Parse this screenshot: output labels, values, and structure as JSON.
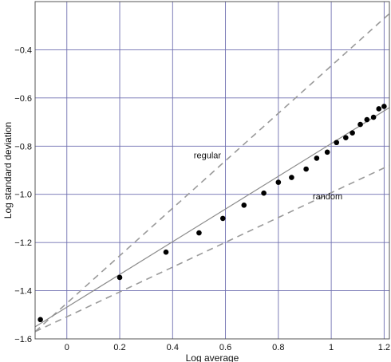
{
  "chart_data": {
    "type": "scatter",
    "xlabel": "Log average",
    "ylabel": "Log standard deviation",
    "xlim": [
      -0.12,
      1.22
    ],
    "ylim": [
      -1.6,
      -0.2
    ],
    "x_ticks": [
      0,
      0.2,
      0.4,
      0.6,
      0.8,
      1,
      1.2
    ],
    "x_tick_labels": [
      "0",
      "0.2",
      "0.4",
      "0.6",
      "0.8",
      "1",
      "1.2"
    ],
    "y_ticks": [
      -1.6,
      -1.4,
      -1.2,
      -1.0,
      -0.8,
      -0.6,
      -0.4
    ],
    "y_tick_labels": [
      "−1.6",
      "−1.4",
      "−1.2",
      "−1.0",
      "−0.8",
      "−0.6",
      "−0.4"
    ],
    "grid": true,
    "points": {
      "x": [
        -0.1,
        0.2,
        0.375,
        0.5,
        0.59,
        0.67,
        0.745,
        0.8,
        0.85,
        0.905,
        0.945,
        0.985,
        1.02,
        1.055,
        1.08,
        1.11,
        1.135,
        1.16,
        1.18,
        1.2
      ],
      "y": [
        -1.52,
        -1.345,
        -1.24,
        -1.16,
        -1.1,
        -1.045,
        -0.995,
        -0.95,
        -0.93,
        -0.895,
        -0.85,
        -0.825,
        -0.785,
        -0.765,
        -0.745,
        -0.71,
        -0.69,
        -0.68,
        -0.645,
        -0.635
      ]
    },
    "fit_line": {
      "x": [
        -0.12,
        1.22
      ],
      "y": [
        -1.55,
        -0.64
      ]
    },
    "reference_lines": [
      {
        "x": [
          -0.12,
          1.22
        ],
        "y": [
          -1.57,
          -0.25
        ]
      },
      {
        "x": [
          -0.12,
          1.22
        ],
        "y": [
          -1.57,
          -0.88
        ]
      }
    ],
    "annotations": [
      {
        "text": "regular",
        "x": 0.48,
        "y": -0.85
      },
      {
        "text": "random",
        "x": 0.93,
        "y": -1.02
      }
    ]
  }
}
